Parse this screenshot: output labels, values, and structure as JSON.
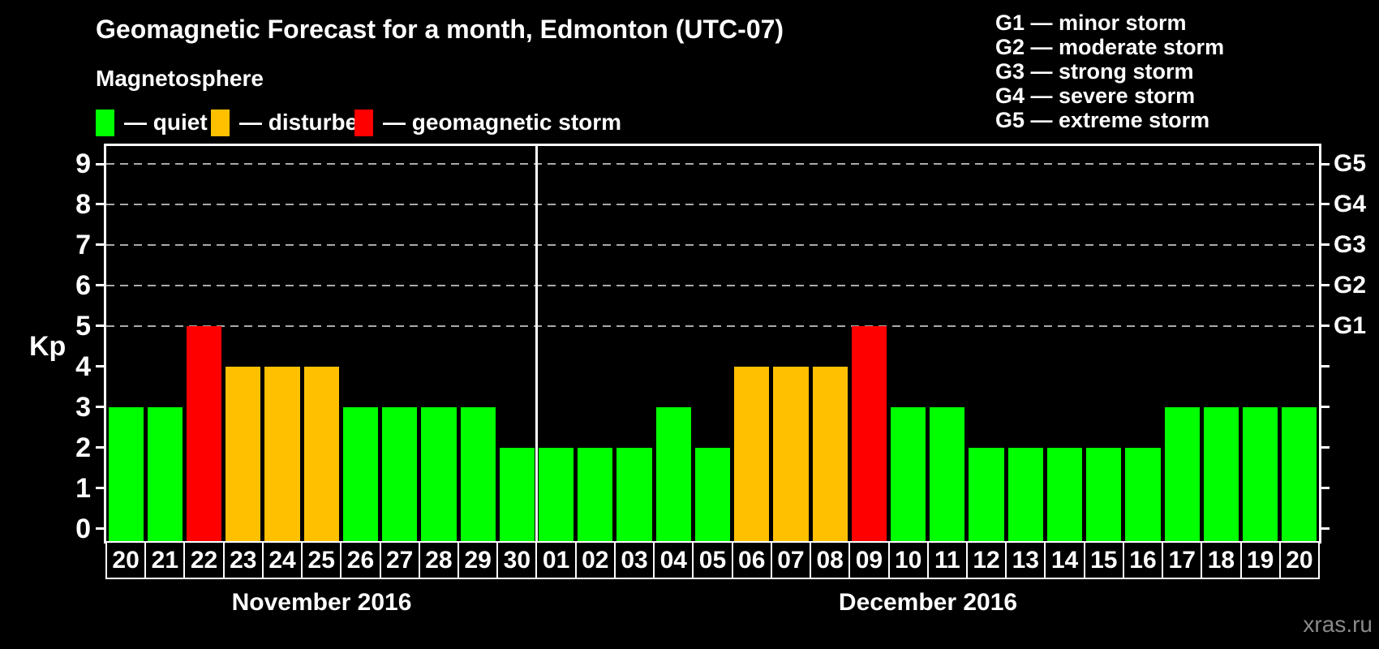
{
  "title": "Geomagnetic Forecast for a month, Edmonton (UTC-07)",
  "legend": {
    "title": "Magnetosphere",
    "items": [
      {
        "key": "quiet",
        "label": "— quiet",
        "color": "#00ff00"
      },
      {
        "key": "disturbed",
        "label": "— disturbed",
        "color": "#ffc000"
      },
      {
        "key": "storm",
        "label": "— geomagnetic storm",
        "color": "#ff0000"
      }
    ]
  },
  "g_legend": {
    "items": [
      {
        "text": "G1 — minor storm"
      },
      {
        "text": "G2 — moderate storm"
      },
      {
        "text": "G3 — strong storm"
      },
      {
        "text": "G4 — severe storm"
      },
      {
        "text": "G5 — extreme storm"
      }
    ]
  },
  "watermark": "xras.ru",
  "chart_data": {
    "type": "bar",
    "title": "Geomagnetic Forecast for a month, Edmonton (UTC-07)",
    "ylabel": "Kp",
    "ylim": [
      0,
      9
    ],
    "y_ticks": [
      0,
      1,
      2,
      3,
      4,
      5,
      6,
      7,
      8,
      9
    ],
    "grid": "dashed horizontal gridlines at Kp 5-9 only",
    "grid_levels": [
      5,
      6,
      7,
      8,
      9
    ],
    "right_axis_labels": [
      {
        "label": "G1",
        "kp": 5
      },
      {
        "label": "G2",
        "kp": 6
      },
      {
        "label": "G3",
        "kp": 7
      },
      {
        "label": "G4",
        "kp": 8
      },
      {
        "label": "G5",
        "kp": 9
      }
    ],
    "status_colors": {
      "quiet": "#00ff00",
      "disturbed": "#ffc000",
      "storm": "#ff0000"
    },
    "legend_position": "top-left",
    "months": [
      {
        "label": "November 2016",
        "days": [
          "20",
          "21",
          "22",
          "23",
          "24",
          "25",
          "26",
          "27",
          "28",
          "29",
          "30"
        ],
        "values": [
          3,
          3,
          5,
          4,
          4,
          4,
          3,
          3,
          3,
          3,
          2
        ],
        "status": [
          "quiet",
          "quiet",
          "storm",
          "disturbed",
          "disturbed",
          "disturbed",
          "quiet",
          "quiet",
          "quiet",
          "quiet",
          "quiet"
        ]
      },
      {
        "label": "December 2016",
        "days": [
          "01",
          "02",
          "03",
          "04",
          "05",
          "06",
          "07",
          "08",
          "09",
          "10",
          "11",
          "12",
          "13",
          "14",
          "15",
          "16",
          "17",
          "18",
          "19",
          "20"
        ],
        "values": [
          2,
          2,
          2,
          3,
          2,
          4,
          4,
          4,
          5,
          3,
          3,
          2,
          2,
          2,
          2,
          2,
          3,
          3,
          3,
          3
        ],
        "status": [
          "quiet",
          "quiet",
          "quiet",
          "quiet",
          "quiet",
          "disturbed",
          "disturbed",
          "disturbed",
          "storm",
          "quiet",
          "quiet",
          "quiet",
          "quiet",
          "quiet",
          "quiet",
          "quiet",
          "quiet",
          "quiet",
          "quiet",
          "quiet"
        ]
      }
    ]
  }
}
